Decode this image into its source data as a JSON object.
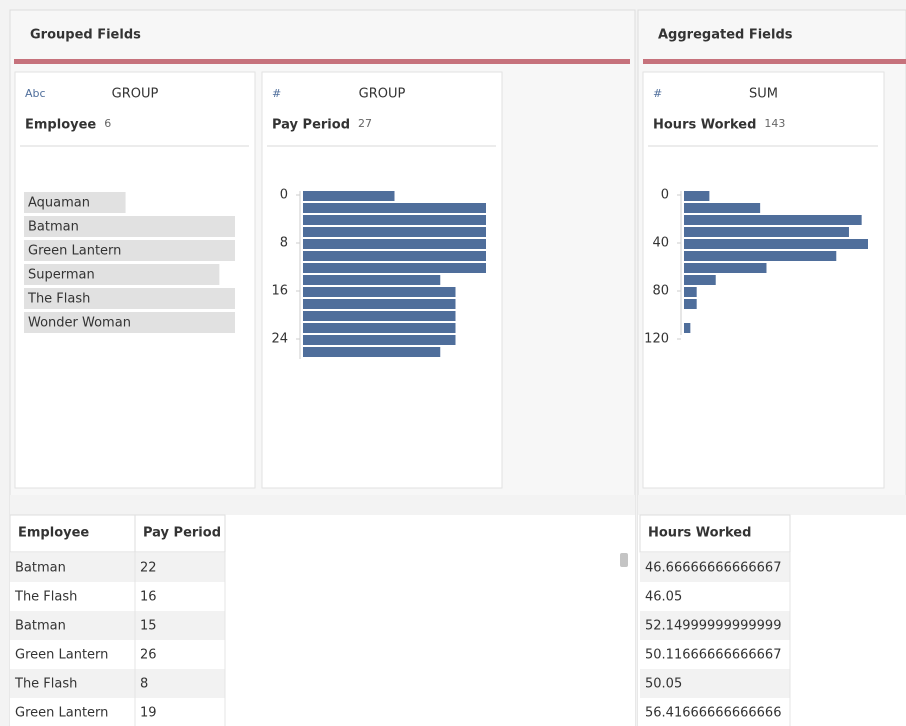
{
  "left_panel": {
    "title": "Grouped Fields"
  },
  "right_panel": {
    "title": "Aggregated Fields"
  },
  "profiles": [
    {
      "type": "bar",
      "type_icon": "Abc",
      "role": "GROUP",
      "field": "Employee",
      "count": 6,
      "categories": [
        "Aquaman",
        "Batman",
        "Green Lantern",
        "Superman",
        "The Flash",
        "Wonder Woman"
      ],
      "values": [
        13,
        27,
        27,
        25,
        27,
        27
      ],
      "color": "#e1e1e1"
    },
    {
      "type": "histogram",
      "type_icon": "#",
      "role": "GROUP",
      "field": "Pay Period",
      "count": 27,
      "bins": [
        0,
        2,
        4,
        6,
        8,
        10,
        12,
        14,
        16,
        18,
        20,
        22,
        24,
        26,
        28
      ],
      "values": [
        6,
        12,
        12,
        12,
        12,
        12,
        12,
        9,
        10,
        10,
        10,
        10,
        10,
        9
      ],
      "ticks": [
        0,
        8,
        16,
        24
      ],
      "color": "#4f6e9b"
    },
    {
      "type": "histogram",
      "type_icon": "#",
      "role": "SUM",
      "field": "Hours Worked",
      "count": 143,
      "bins": [
        0,
        10,
        20,
        30,
        40,
        50,
        60,
        70,
        80,
        90,
        100,
        110,
        120
      ],
      "values": [
        4,
        12,
        28,
        26,
        29,
        24,
        13,
        5,
        2,
        2,
        0,
        1
      ],
      "ticks": [
        0,
        40,
        80,
        120
      ],
      "color": "#4f6e9b"
    }
  ],
  "left_table": {
    "columns": [
      "Employee",
      "Pay Period"
    ],
    "rows": [
      [
        "Batman",
        22
      ],
      [
        "The Flash",
        16
      ],
      [
        "Batman",
        15
      ],
      [
        "Green Lantern",
        26
      ],
      [
        "The Flash",
        8
      ],
      [
        "Green Lantern",
        19
      ]
    ]
  },
  "right_table": {
    "columns": [
      "Hours Worked"
    ],
    "rows": [
      [
        46.66666666666667
      ],
      [
        46.05
      ],
      [
        52.14999999999999
      ],
      [
        50.11666666666667
      ],
      [
        50.05
      ],
      [
        56.41666666666666
      ]
    ]
  }
}
